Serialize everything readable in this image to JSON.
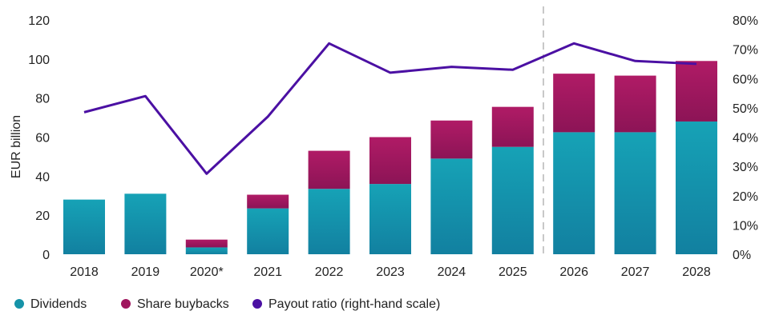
{
  "chart_data": {
    "type": "bar",
    "stacked": true,
    "categories": [
      "2018",
      "2019",
      "2020*",
      "2021",
      "2022",
      "2023",
      "2024",
      "2025",
      "2026",
      "2027",
      "2028"
    ],
    "series": [
      {
        "name": "Dividends",
        "axis": "left",
        "color": "#1593a8",
        "values": [
          28,
          31,
          3.5,
          23.5,
          33.5,
          36,
          49,
          55,
          62.5,
          62.5,
          68
        ]
      },
      {
        "name": "Share buybacks",
        "axis": "left",
        "color": "#a0165e",
        "values": [
          0,
          0,
          4,
          7,
          19.5,
          24,
          19.5,
          20.5,
          30,
          29,
          31
        ]
      },
      {
        "name": "Payout ratio (right-hand scale)",
        "axis": "right",
        "type": "line",
        "color": "#4b10a3",
        "values": [
          48.5,
          54,
          27.5,
          47,
          72,
          62,
          64,
          63,
          72,
          66,
          65
        ]
      }
    ],
    "ylabel": "EUR billion",
    "ylim": [
      0,
      120
    ],
    "yticks": [
      0,
      20,
      40,
      60,
      80,
      100,
      120
    ],
    "y2lim": [
      0,
      80
    ],
    "y2ticks": [
      "0%",
      "10%",
      "20%",
      "30%",
      "40%",
      "50%",
      "60%",
      "70%",
      "80%"
    ],
    "forecast_divider_after": "2025",
    "grid": false,
    "legend": "bottom-left"
  }
}
